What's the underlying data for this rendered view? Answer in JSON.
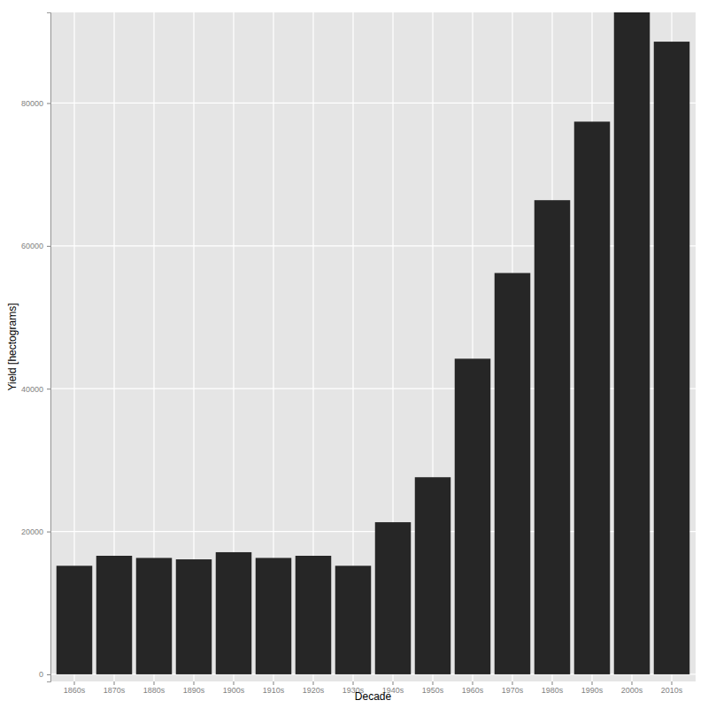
{
  "chart_data": {
    "type": "bar",
    "x_label": "Decade",
    "y_label": "Yield [hectograms]",
    "categories": [
      "1860s",
      "1870s",
      "1880s",
      "1890s",
      "1900s",
      "1910s",
      "1920s",
      "1930s",
      "1940s",
      "1950s",
      "1960s",
      "1970s",
      "1980s",
      "1990s",
      "2000s",
      "2010s"
    ],
    "values": [
      15200,
      16600,
      16300,
      16100,
      17100,
      16300,
      16600,
      15200,
      21300,
      27600,
      44200,
      56200,
      66400,
      77400,
      92700,
      88600
    ],
    "color": "#262626",
    "ylim": [
      -1000,
      92700
    ],
    "yticks": [
      0,
      20000,
      40000,
      60000,
      80000
    ],
    "grid": true
  }
}
